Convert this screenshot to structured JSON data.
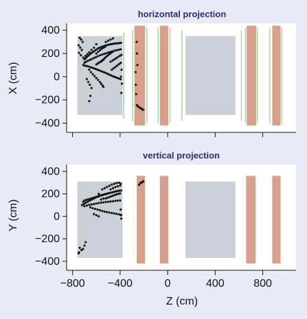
{
  "colors": {
    "background": "#e8ebf6",
    "plot_background": "#ffffff",
    "title": "#23307a",
    "tracker_gray": "#c9d0d8",
    "rich_salmon": "#d7a08a",
    "chamber_green": "#a7d8a9",
    "hits": "#111111"
  },
  "chart_data": [
    {
      "type": "scatter",
      "title": "horizontal projection",
      "xlabel": "",
      "ylabel": "X (cm)",
      "xlim": [
        -850,
        1080
      ],
      "ylim": [
        -480,
        460
      ],
      "xticks": [
        -800,
        -400,
        0,
        400,
        800
      ],
      "yticks": [
        400,
        200,
        0,
        -200,
        -400
      ],
      "ytick_labels": [
        "400",
        "200",
        "0",
        "−200",
        "−400"
      ],
      "show_xtick_labels": false,
      "grid": false,
      "detector_regions": [
        {
          "kind": "tracker",
          "color": "#c9d0d8",
          "z": [
            -760,
            -380
          ],
          "v": [
            -330,
            350
          ]
        },
        {
          "kind": "tracker",
          "color": "#c9d0d8",
          "z": [
            150,
            570
          ],
          "v": [
            -330,
            350
          ]
        },
        {
          "kind": "rich",
          "color": "#d7a08a",
          "z": [
            -280,
            -190
          ],
          "v": [
            -420,
            440
          ]
        },
        {
          "kind": "rich",
          "color": "#d7a08a",
          "z": [
            -65,
            5
          ],
          "v": [
            -420,
            440
          ]
        },
        {
          "kind": "rich",
          "color": "#d7a08a",
          "z": [
            665,
            745
          ],
          "v": [
            -420,
            440
          ]
        },
        {
          "kind": "rich",
          "color": "#d7a08a",
          "z": [
            880,
            950
          ],
          "v": [
            -420,
            440
          ]
        }
      ],
      "chamber_lines": [
        {
          "z": -370,
          "v": [
            -360,
            380
          ]
        },
        {
          "z": -295,
          "v": [
            -390,
            400
          ]
        },
        {
          "z": -175,
          "v": [
            -400,
            420
          ]
        },
        {
          "z": -80,
          "v": [
            -400,
            420
          ]
        },
        {
          "z": 20,
          "v": [
            -400,
            420
          ]
        },
        {
          "z": 120,
          "v": [
            -380,
            400
          ]
        },
        {
          "z": 620,
          "v": [
            -380,
            400
          ]
        },
        {
          "z": 655,
          "v": [
            -400,
            420
          ]
        },
        {
          "z": 755,
          "v": [
            -400,
            420
          ]
        },
        {
          "z": 860,
          "v": [
            -400,
            420
          ]
        },
        {
          "z": 960,
          "v": [
            -400,
            420
          ]
        }
      ],
      "points": [
        [
          -740,
          335
        ],
        [
          -728,
          320
        ],
        [
          -715,
          300
        ],
        [
          -748,
          270
        ],
        [
          -735,
          250
        ],
        [
          -722,
          230
        ],
        [
          -745,
          205
        ],
        [
          -730,
          185
        ],
        [
          -710,
          165
        ],
        [
          -700,
          150
        ],
        [
          -690,
          160
        ],
        [
          -678,
          172
        ],
        [
          -665,
          183
        ],
        [
          -652,
          195
        ],
        [
          -640,
          205
        ],
        [
          -625,
          215
        ],
        [
          -612,
          225
        ],
        [
          -598,
          235
        ],
        [
          -585,
          245
        ],
        [
          -570,
          250
        ],
        [
          -555,
          258
        ],
        [
          -540,
          262
        ],
        [
          -525,
          268
        ],
        [
          -510,
          272
        ],
        [
          -495,
          276
        ],
        [
          -480,
          280
        ],
        [
          -465,
          282
        ],
        [
          -450,
          285
        ],
        [
          -435,
          287
        ],
        [
          -420,
          288
        ],
        [
          -405,
          290
        ],
        [
          -392,
          292
        ],
        [
          -700,
          120
        ],
        [
          -688,
          128
        ],
        [
          -672,
          136
        ],
        [
          -655,
          144
        ],
        [
          -640,
          152
        ],
        [
          -622,
          160
        ],
        [
          -605,
          168
        ],
        [
          -588,
          176
        ],
        [
          -570,
          184
        ],
        [
          -552,
          190
        ],
        [
          -535,
          196
        ],
        [
          -518,
          202
        ],
        [
          -500,
          208
        ],
        [
          -482,
          214
        ],
        [
          -465,
          218
        ],
        [
          -448,
          224
        ],
        [
          -430,
          228
        ],
        [
          -412,
          232
        ],
        [
          -395,
          236
        ],
        [
          -710,
          100
        ],
        [
          -695,
          95
        ],
        [
          -680,
          92
        ],
        [
          -665,
          88
        ],
        [
          -650,
          82
        ],
        [
          -635,
          78
        ],
        [
          -620,
          72
        ],
        [
          -605,
          66
        ],
        [
          -590,
          60
        ],
        [
          -575,
          54
        ],
        [
          -560,
          48
        ],
        [
          -545,
          42
        ],
        [
          -530,
          36
        ],
        [
          -515,
          30
        ],
        [
          -500,
          22
        ],
        [
          -485,
          16
        ],
        [
          -470,
          8
        ],
        [
          -455,
          2
        ],
        [
          -440,
          -4
        ],
        [
          -425,
          -10
        ],
        [
          -410,
          -16
        ],
        [
          -395,
          -22
        ],
        [
          -660,
          60
        ],
        [
          -645,
          40
        ],
        [
          -630,
          22
        ],
        [
          -615,
          5
        ],
        [
          -600,
          -12
        ],
        [
          -585,
          -28
        ],
        [
          -570,
          -45
        ],
        [
          -560,
          -60
        ],
        [
          -548,
          -75
        ],
        [
          -540,
          -88
        ],
        [
          -680,
          -20
        ],
        [
          -668,
          -45
        ],
        [
          -655,
          -70
        ],
        [
          -640,
          -98
        ],
        [
          -650,
          -165
        ],
        [
          -660,
          -210
        ],
        [
          -470,
          60
        ],
        [
          -455,
          72
        ],
        [
          -440,
          84
        ],
        [
          -425,
          96
        ],
        [
          -410,
          108
        ],
        [
          -395,
          118
        ],
        [
          -480,
          130
        ],
        [
          -462,
          140
        ],
        [
          -448,
          150
        ],
        [
          -432,
          160
        ],
        [
          -418,
          170
        ],
        [
          -402,
          180
        ],
        [
          -388,
          188
        ],
        [
          -560,
          130
        ],
        [
          -548,
          142
        ],
        [
          -536,
          154
        ],
        [
          -524,
          166
        ],
        [
          -512,
          176
        ],
        [
          -500,
          186
        ],
        [
          -488,
          196
        ],
        [
          -476,
          206
        ],
        [
          -464,
          214
        ],
        [
          -600,
          105
        ],
        [
          -588,
          114
        ],
        [
          -576,
          122
        ],
        [
          -564,
          130
        ],
        [
          -552,
          138
        ],
        [
          -540,
          146
        ],
        [
          -600,
          200
        ],
        [
          -585,
          215
        ],
        [
          -570,
          228
        ],
        [
          -555,
          240
        ],
        [
          -540,
          250
        ],
        [
          -525,
          258
        ],
        [
          -395,
          120
        ],
        [
          -388,
          60
        ],
        [
          -392,
          0
        ],
        [
          -385,
          -60
        ],
        [
          -390,
          -140
        ],
        [
          -260,
          300
        ],
        [
          -258,
          200
        ],
        [
          -255,
          100
        ],
        [
          -270,
          40
        ],
        [
          -268,
          -70
        ],
        [
          -265,
          -150
        ],
        [
          -258,
          -245
        ],
        [
          -250,
          -255
        ],
        [
          -238,
          -265
        ],
        [
          -225,
          -272
        ],
        [
          -215,
          -280
        ],
        [
          -205,
          -285
        ],
        [
          -600,
          280
        ],
        [
          -620,
          250
        ],
        [
          -640,
          230
        ],
        [
          -660,
          210
        ],
        [
          -675,
          195
        ],
        [
          -690,
          180
        ],
        [
          -520,
          300
        ],
        [
          -500,
          310
        ],
        [
          -480,
          320
        ],
        [
          -460,
          330
        ]
      ]
    },
    {
      "type": "scatter",
      "title": "vertical projection",
      "xlabel": "Z (cm)",
      "ylabel": "Y (cm)",
      "xlim": [
        -850,
        1080
      ],
      "ylim": [
        -480,
        460
      ],
      "xticks": [
        -800,
        -400,
        0,
        400,
        800
      ],
      "xtick_labels": [
        "−800",
        "−400",
        "0",
        "400",
        "800"
      ],
      "yticks": [
        400,
        200,
        0,
        -200,
        -400
      ],
      "ytick_labels": [
        "400",
        "200",
        "0",
        "−200",
        "−400"
      ],
      "show_xtick_labels": true,
      "grid": false,
      "detector_regions": [
        {
          "kind": "tracker",
          "color": "#c9d0d8",
          "z": [
            -760,
            -380
          ],
          "v": [
            -370,
            310
          ]
        },
        {
          "kind": "tracker",
          "color": "#c9d0d8",
          "z": [
            150,
            570
          ],
          "v": [
            -370,
            310
          ]
        },
        {
          "kind": "rich",
          "color": "#d7a08a",
          "z": [
            -260,
            -190
          ],
          "v": [
            -420,
            360
          ]
        },
        {
          "kind": "rich",
          "color": "#d7a08a",
          "z": [
            -65,
            5
          ],
          "v": [
            -420,
            360
          ]
        },
        {
          "kind": "rich",
          "color": "#d7a08a",
          "z": [
            660,
            740
          ],
          "v": [
            -420,
            360
          ]
        },
        {
          "kind": "rich",
          "color": "#d7a08a",
          "z": [
            880,
            950
          ],
          "v": [
            -420,
            360
          ]
        }
      ],
      "chamber_lines": [],
      "points": [
        [
          -720,
          100
        ],
        [
          -705,
          110
        ],
        [
          -690,
          120
        ],
        [
          -675,
          130
        ],
        [
          -660,
          138
        ],
        [
          -645,
          146
        ],
        [
          -630,
          154
        ],
        [
          -615,
          162
        ],
        [
          -600,
          170
        ],
        [
          -585,
          176
        ],
        [
          -570,
          182
        ],
        [
          -555,
          188
        ],
        [
          -540,
          194
        ],
        [
          -525,
          198
        ],
        [
          -510,
          202
        ],
        [
          -495,
          206
        ],
        [
          -480,
          210
        ],
        [
          -465,
          214
        ],
        [
          -450,
          218
        ],
        [
          -435,
          222
        ],
        [
          -420,
          226
        ],
        [
          -405,
          228
        ],
        [
          -390,
          230
        ],
        [
          -700,
          90
        ],
        [
          -680,
          96
        ],
        [
          -660,
          102
        ],
        [
          -640,
          106
        ],
        [
          -620,
          110
        ],
        [
          -600,
          114
        ],
        [
          -580,
          118
        ],
        [
          -560,
          122
        ],
        [
          -540,
          124
        ],
        [
          -520,
          128
        ],
        [
          -500,
          130
        ],
        [
          -480,
          132
        ],
        [
          -460,
          134
        ],
        [
          -440,
          138
        ],
        [
          -420,
          140
        ],
        [
          -400,
          142
        ],
        [
          -690,
          145
        ],
        [
          -672,
          150
        ],
        [
          -654,
          156
        ],
        [
          -636,
          162
        ],
        [
          -618,
          168
        ],
        [
          -600,
          174
        ],
        [
          -582,
          180
        ],
        [
          -564,
          186
        ],
        [
          -546,
          190
        ],
        [
          -528,
          196
        ],
        [
          -510,
          200
        ],
        [
          -650,
          80
        ],
        [
          -630,
          72
        ],
        [
          -610,
          66
        ],
        [
          -590,
          60
        ],
        [
          -570,
          54
        ],
        [
          -550,
          48
        ],
        [
          -530,
          42
        ],
        [
          -510,
          38
        ],
        [
          -490,
          34
        ],
        [
          -470,
          30
        ],
        [
          -450,
          26
        ],
        [
          -430,
          22
        ],
        [
          -410,
          18
        ],
        [
          -392,
          14
        ],
        [
          -550,
          240
        ],
        [
          -530,
          250
        ],
        [
          -510,
          262
        ],
        [
          -490,
          272
        ],
        [
          -470,
          282
        ],
        [
          -450,
          290
        ],
        [
          -430,
          296
        ],
        [
          -410,
          300
        ],
        [
          -395,
          290
        ],
        [
          -520,
          160
        ],
        [
          -505,
          166
        ],
        [
          -490,
          172
        ],
        [
          -475,
          178
        ],
        [
          -460,
          184
        ],
        [
          -445,
          190
        ],
        [
          -430,
          196
        ],
        [
          -415,
          200
        ],
        [
          -400,
          204
        ],
        [
          -620,
          20
        ],
        [
          -600,
          10
        ],
        [
          -580,
          0
        ],
        [
          -395,
          60
        ],
        [
          -392,
          10
        ],
        [
          -390,
          -20
        ],
        [
          -690,
          -230
        ],
        [
          -700,
          -260
        ],
        [
          -712,
          -290
        ],
        [
          -725,
          -300
        ],
        [
          -740,
          -280
        ],
        [
          -745,
          -320
        ],
        [
          -750,
          -330
        ],
        [
          -240,
          280
        ],
        [
          -230,
          295
        ],
        [
          -222,
          300
        ],
        [
          -212,
          305
        ],
        [
          -205,
          312
        ],
        [
          -480,
          240
        ],
        [
          -460,
          250
        ],
        [
          -440,
          260
        ],
        [
          -420,
          268
        ],
        [
          -400,
          274
        ],
        [
          -560,
          150
        ],
        [
          -540,
          158
        ],
        [
          -700,
          140
        ],
        [
          -710,
          130
        ],
        [
          -580,
          200
        ]
      ]
    }
  ]
}
